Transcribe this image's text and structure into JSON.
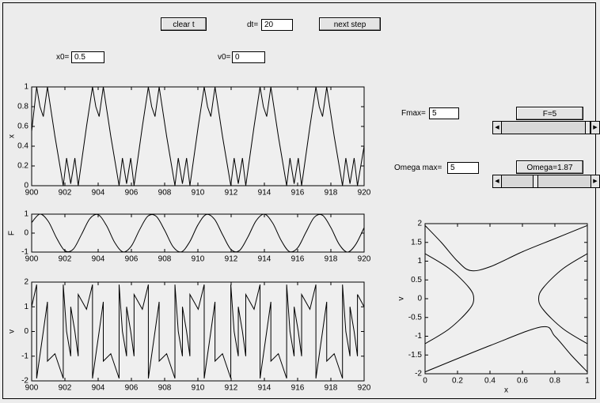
{
  "controls": {
    "clear_button": "clear t",
    "dt": {
      "label": "dt=",
      "value": "20"
    },
    "next_button": "next step",
    "x0": {
      "label": "x0=",
      "value": "0.5"
    },
    "v0": {
      "label": "v0=",
      "value": "0"
    },
    "fmax": {
      "label": "Fmax=",
      "value": "5"
    },
    "f_slider": {
      "label": "F=5",
      "value": 5
    },
    "omega_max": {
      "label": "Omega max=",
      "value": "5"
    },
    "omega_slider": {
      "label": "Omega=1.87",
      "value": 1.87
    }
  },
  "chart_data": [
    {
      "type": "line",
      "ylabel": "x",
      "xlim": [
        900,
        920
      ],
      "xticks": [
        900,
        902,
        904,
        906,
        908,
        910,
        912,
        914,
        916,
        918,
        920
      ],
      "ylim": [
        0,
        1
      ],
      "yticks": [
        0,
        0.2,
        0.4,
        0.6,
        0.8,
        1
      ],
      "series": [
        {
          "color": "#000000",
          "x": [
            900,
            900.3,
            900.5,
            900.7,
            900.95,
            901.4,
            901.9,
            902.1,
            902.35,
            902.6,
            902.8,
            903.3,
            903.66,
            903.86,
            904.06,
            904.31,
            904.76,
            905.26,
            905.46,
            905.71,
            905.96,
            906.16,
            906.66,
            907.02,
            907.22,
            907.42,
            907.67,
            908.12,
            908.62,
            908.82,
            909.07,
            909.32,
            909.52,
            910.02,
            910.38,
            910.58,
            910.78,
            911.03,
            911.48,
            911.98,
            912.18,
            912.43,
            912.68,
            912.88,
            913.38,
            913.74,
            913.94,
            914.14,
            914.39,
            914.84,
            915.34,
            915.54,
            915.79,
            916.04,
            916.24,
            916.74,
            917.1,
            917.3,
            917.5,
            917.75,
            918.2,
            918.7,
            918.9,
            919.15,
            919.4,
            919.6,
            920
          ],
          "values": [
            0.55,
            1,
            0.8,
            0.7,
            1,
            0.5,
            0,
            0.28,
            0.02,
            0.28,
            0,
            0.6,
            1,
            0.8,
            0.7,
            1,
            0.5,
            0,
            0.28,
            0.02,
            0.28,
            0,
            0.6,
            1,
            0.8,
            0.7,
            1,
            0.5,
            0,
            0.28,
            0.02,
            0.28,
            0,
            0.6,
            1,
            0.8,
            0.7,
            1,
            0.5,
            0,
            0.28,
            0.02,
            0.28,
            0,
            0.6,
            1,
            0.8,
            0.7,
            1,
            0.5,
            0,
            0.28,
            0.02,
            0.28,
            0,
            0.6,
            1,
            0.8,
            0.7,
            1,
            0.5,
            0,
            0.28,
            0.02,
            0.28,
            0,
            0.4
          ]
        }
      ]
    },
    {
      "type": "line",
      "ylabel": "F",
      "smooth": true,
      "xlim": [
        900,
        920
      ],
      "xticks": [
        900,
        902,
        904,
        906,
        908,
        910,
        912,
        914,
        916,
        918,
        920
      ],
      "ylim": [
        -1,
        1
      ],
      "yticks": [
        -1,
        0,
        1
      ],
      "series": [
        {
          "color": "#000000",
          "x": [
            900,
            900.5,
            901,
            901.5,
            902,
            902.5,
            903,
            903.5,
            904,
            904.5,
            905,
            905.5,
            906,
            906.5,
            907,
            907.5,
            908,
            908.5,
            909,
            909.5,
            910,
            910.5,
            911,
            911.5,
            912,
            912.5,
            913,
            913.5,
            914,
            914.5,
            915,
            915.5,
            916,
            916.5,
            917,
            917.5,
            918,
            918.5,
            919,
            919.5,
            920
          ],
          "values": [
            0.56,
            1,
            0.62,
            -0.26,
            -0.93,
            -0.85,
            -0.07,
            0.76,
            0.97,
            0.4,
            -0.5,
            -0.99,
            -0.68,
            0.19,
            0.9,
            0.88,
            0.15,
            -0.71,
            -0.99,
            -0.47,
            0.43,
            0.98,
            0.73,
            -0.11,
            -0.87,
            -0.92,
            -0.22,
            0.65,
            1,
            0.53,
            -0.37,
            -0.97,
            -0.78,
            0.04,
            0.83,
            0.94,
            0.29,
            -0.59,
            -1,
            -0.59,
            0.29
          ]
        }
      ]
    },
    {
      "type": "line",
      "ylabel": "v",
      "xlim": [
        900,
        920
      ],
      "xticks": [
        900,
        902,
        904,
        906,
        908,
        910,
        912,
        914,
        916,
        918,
        920
      ],
      "ylim": [
        -2,
        2
      ],
      "yticks": [
        -2,
        -1,
        0,
        1,
        2
      ],
      "series": [
        {
          "color": "#000000",
          "x": [
            900,
            900.3,
            900.3,
            900.7,
            900.95,
            900.95,
            901.4,
            901.9,
            901.9,
            902.1,
            902.35,
            902.35,
            902.6,
            902.8,
            902.8,
            903.3,
            903.66,
            903.66,
            904.06,
            904.31,
            904.31,
            904.76,
            905.26,
            905.26,
            905.46,
            905.71,
            905.71,
            905.96,
            906.16,
            906.16,
            906.66,
            907.02,
            907.02,
            907.42,
            907.67,
            907.67,
            908.12,
            908.62,
            908.62,
            908.82,
            909.07,
            909.07,
            909.32,
            909.52,
            909.52,
            910.02,
            910.38,
            910.38,
            910.78,
            911.03,
            911.03,
            911.48,
            911.98,
            911.98,
            912.18,
            912.43,
            912.43,
            912.68,
            912.88,
            912.88,
            913.38,
            913.74,
            913.74,
            914.14,
            914.39,
            914.39,
            914.84,
            915.34,
            915.34,
            915.54,
            915.79,
            915.79,
            916.04,
            916.24,
            916.24,
            916.74,
            917.1,
            917.1,
            917.5,
            917.75,
            917.75,
            918.2,
            918.7,
            918.7,
            918.9,
            919.15,
            919.15,
            919.4,
            919.6,
            919.6,
            920
          ],
          "values": [
            1,
            1.9,
            -1.9,
            0,
            1.2,
            -1.2,
            -0.9,
            -1.9,
            1.9,
            0,
            -1,
            1,
            0,
            -1,
            1.5,
            0.9,
            1.9,
            -1.9,
            0,
            1.2,
            -1.2,
            -0.9,
            -1.9,
            1.9,
            0,
            -1,
            1,
            0,
            -1,
            1.5,
            0.9,
            1.9,
            -1.9,
            0,
            1.2,
            -1.2,
            -0.9,
            -1.9,
            1.9,
            0,
            -1,
            1,
            0,
            -1,
            1.5,
            0.9,
            1.9,
            -1.9,
            0,
            1.2,
            -1.2,
            -0.9,
            -1.9,
            1.9,
            0,
            -1,
            1,
            0,
            -1,
            1.5,
            0.9,
            1.9,
            -1.9,
            0,
            1.2,
            -1.2,
            -0.9,
            -1.9,
            1.9,
            0,
            -1,
            1,
            0,
            -1,
            1.5,
            0.9,
            1.9,
            -1.9,
            0,
            1.2,
            -1.2,
            -0.9,
            -1.9,
            1.9,
            0,
            -1,
            1,
            0,
            -1,
            1.5,
            1
          ]
        }
      ]
    },
    {
      "type": "line",
      "xlabel": "x",
      "ylabel": "v",
      "smooth": true,
      "xlim": [
        0,
        1
      ],
      "xticks": [
        0,
        0.2,
        0.4,
        0.6,
        0.8,
        1
      ],
      "ylim": [
        -2,
        2
      ],
      "yticks": [
        -2,
        -1.5,
        -1,
        -0.5,
        0,
        0.5,
        1,
        1.5,
        2
      ],
      "series": [
        {
          "color": "#000000",
          "x": [
            0,
            0.1,
            0.2,
            0.28,
            0.4,
            0.6,
            0.8,
            1
          ],
          "values": [
            1.95,
            1.5,
            1,
            0.75,
            0.85,
            1.25,
            1.6,
            1.95
          ]
        },
        {
          "color": "#000000",
          "x": [
            0,
            0.15,
            0.27,
            0.3,
            0.27,
            0.15,
            0
          ],
          "values": [
            1.2,
            0.8,
            0.3,
            0,
            -0.3,
            -0.8,
            -1.2
          ]
        },
        {
          "color": "#000000",
          "x": [
            1,
            0.85,
            0.73,
            0.7,
            0.73,
            0.85,
            1
          ],
          "values": [
            1.2,
            0.8,
            0.3,
            0,
            -0.3,
            -0.8,
            -1.2
          ]
        },
        {
          "color": "#000000",
          "x": [
            0,
            0.4,
            0.72,
            0.8,
            0.9,
            1
          ],
          "values": [
            -1.95,
            -1.25,
            -0.75,
            -1,
            -1.5,
            -1.95
          ]
        }
      ]
    }
  ]
}
